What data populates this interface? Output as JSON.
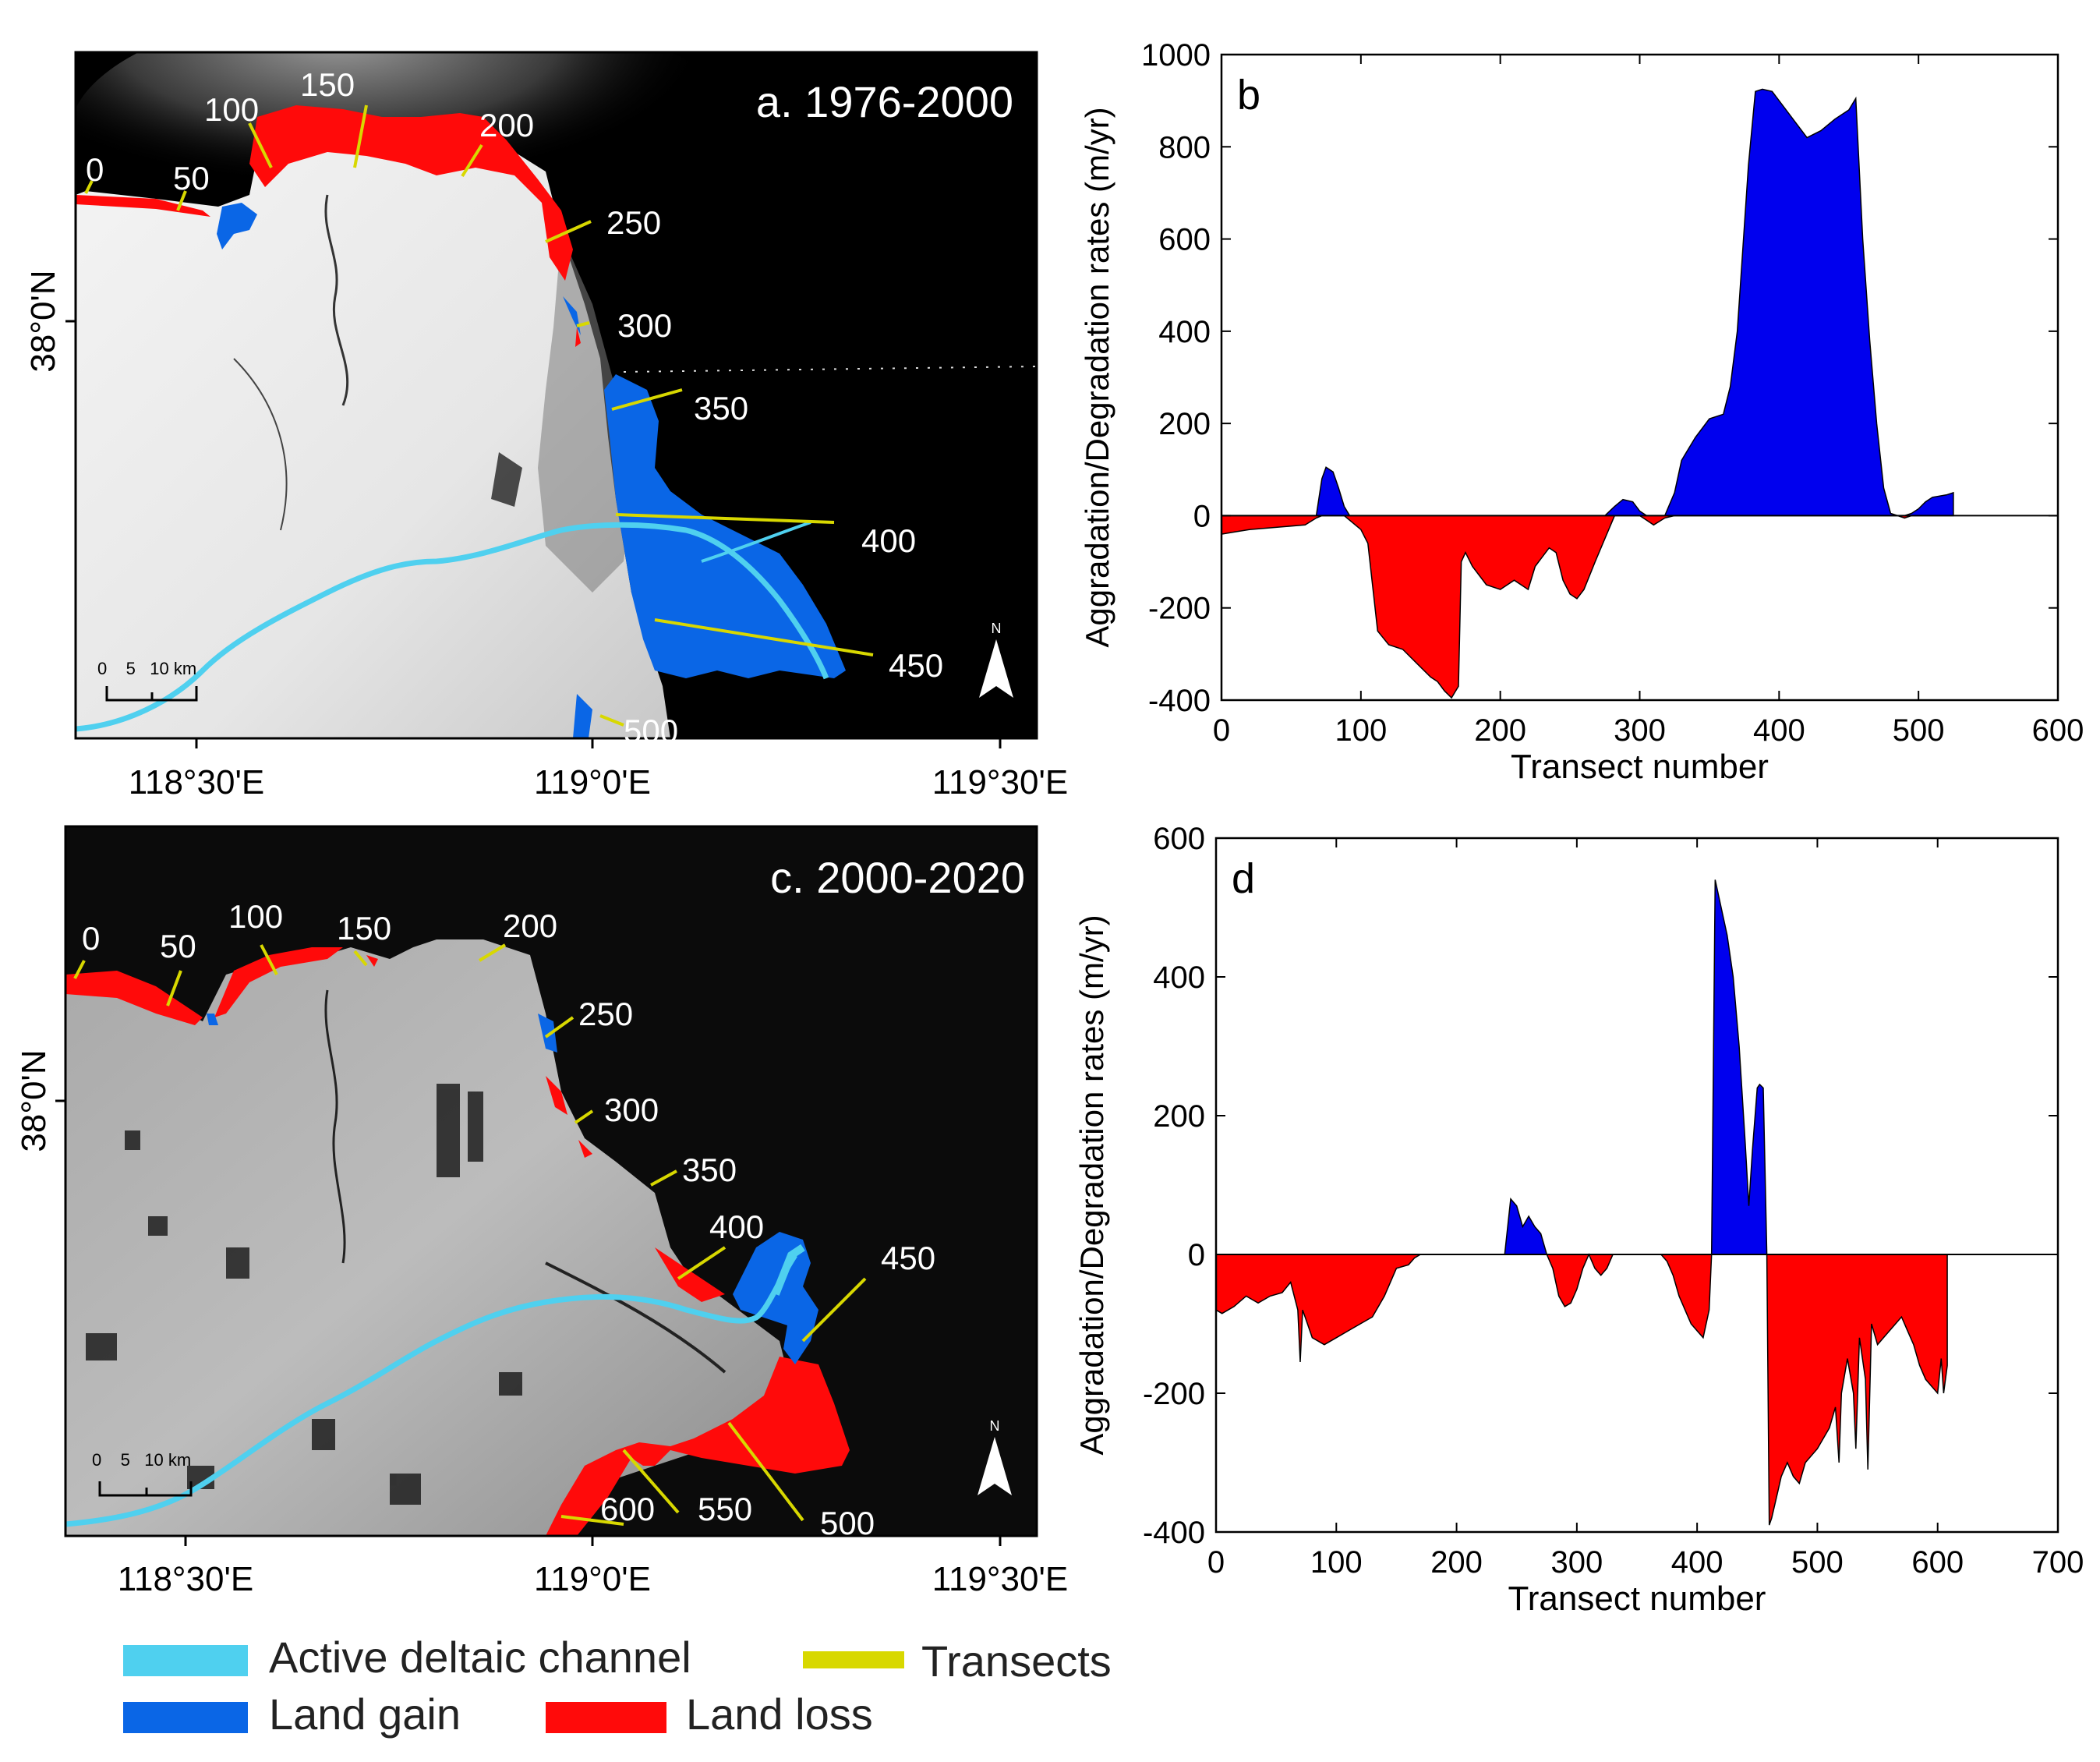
{
  "figure": {
    "colors": {
      "land_gain": "#0a66e6",
      "land_loss": "#ff0a0a",
      "channel": "#4fd0ef",
      "transect": "#d8d800",
      "gain_chart": "#0000ee",
      "loss_chart": "#ff0000"
    },
    "legend": {
      "channel": "Active deltaic channel",
      "transects": "Transects",
      "gain": "Land gain",
      "loss": "Land loss"
    }
  },
  "map_a": {
    "title": "a. 1976-2000",
    "lat_label": "38°0'N",
    "lon_labels": [
      "118°30'E",
      "119°0'E",
      "119°30'E"
    ],
    "scale_label": "0    5   10 km",
    "north": "N",
    "transects": [
      "0",
      "50",
      "100",
      "150",
      "200",
      "250",
      "300",
      "350",
      "400",
      "450",
      "500"
    ]
  },
  "map_c": {
    "title": "c. 2000-2020",
    "lat_label": "38°0'N",
    "lon_labels": [
      "118°30'E",
      "119°0'E",
      "119°30'E"
    ],
    "scale_label": "0    5   10 km",
    "north": "N",
    "transects": [
      "0",
      "50",
      "100",
      "150",
      "200",
      "250",
      "300",
      "350",
      "400",
      "450",
      "500",
      "550",
      "600"
    ]
  },
  "chart_data": [
    {
      "panel": "b",
      "type": "area",
      "title": "b",
      "xlabel": "Transect number",
      "ylabel": "Aggradation/Degradation rates (m/yr)",
      "xlim": [
        0,
        600
      ],
      "ylim": [
        -400,
        1000
      ],
      "xticks": [
        0,
        100,
        200,
        300,
        400,
        500,
        600
      ],
      "yticks": [
        -400,
        -200,
        0,
        200,
        400,
        600,
        800,
        1000
      ],
      "x": [
        0,
        10,
        20,
        40,
        60,
        68,
        72,
        75,
        80,
        84,
        88,
        92,
        96,
        100,
        105,
        112,
        120,
        130,
        140,
        150,
        155,
        160,
        165,
        170,
        172,
        175,
        180,
        190,
        200,
        210,
        220,
        225,
        230,
        235,
        240,
        245,
        250,
        255,
        260,
        268,
        275,
        282,
        288,
        295,
        300,
        305,
        310,
        318,
        325,
        330,
        340,
        350,
        360,
        365,
        370,
        378,
        383,
        388,
        395,
        400,
        410,
        420,
        430,
        440,
        450,
        455,
        460,
        465,
        470,
        475,
        480,
        485,
        490,
        495,
        500,
        505,
        510,
        520,
        525
      ],
      "y": [
        -40,
        -35,
        -30,
        -25,
        -20,
        -5,
        80,
        105,
        95,
        60,
        20,
        -10,
        -20,
        -30,
        -60,
        -250,
        -280,
        -290,
        -320,
        -350,
        -360,
        -380,
        -395,
        -370,
        -100,
        -80,
        -110,
        -150,
        -160,
        -140,
        -160,
        -110,
        -90,
        -70,
        -80,
        -140,
        -170,
        -180,
        -160,
        -100,
        -50,
        20,
        35,
        30,
        10,
        -10,
        -20,
        -5,
        50,
        120,
        170,
        210,
        220,
        280,
        400,
        760,
        920,
        925,
        920,
        900,
        860,
        820,
        835,
        860,
        880,
        905,
        600,
        380,
        200,
        60,
        5,
        0,
        -5,
        5,
        15,
        30,
        40,
        45,
        50
      ],
      "series": [
        {
          "name": "Land gain",
          "sign": "positive"
        },
        {
          "name": "Land loss",
          "sign": "negative"
        }
      ]
    },
    {
      "panel": "d",
      "type": "area",
      "title": "d",
      "xlabel": "Transect number",
      "ylabel": "Aggradation/Degradation rates (m/yr)",
      "xlim": [
        0,
        700
      ],
      "ylim": [
        -400,
        600
      ],
      "xticks": [
        0,
        100,
        200,
        300,
        400,
        500,
        600,
        700
      ],
      "yticks": [
        -400,
        -200,
        0,
        200,
        400,
        600
      ],
      "x": [
        0,
        5,
        15,
        25,
        35,
        45,
        55,
        62,
        68,
        70,
        72,
        76,
        80,
        90,
        100,
        110,
        120,
        130,
        140,
        150,
        160,
        165,
        170,
        240,
        245,
        250,
        255,
        260,
        265,
        270,
        275,
        280,
        285,
        290,
        295,
        300,
        305,
        310,
        315,
        320,
        325,
        330,
        370,
        375,
        380,
        385,
        390,
        395,
        400,
        405,
        410,
        412,
        415,
        420,
        425,
        430,
        435,
        440,
        443,
        446,
        450,
        452,
        455,
        458,
        460,
        462,
        466,
        470,
        475,
        480,
        485,
        490,
        500,
        510,
        515,
        518,
        520,
        525,
        530,
        532,
        535,
        540,
        542,
        545,
        550,
        555,
        560,
        565,
        570,
        575,
        580,
        585,
        590,
        595,
        600,
        603,
        605,
        608
      ],
      "y": [
        -80,
        -85,
        -75,
        -60,
        -70,
        -60,
        -55,
        -40,
        -80,
        -155,
        -80,
        -100,
        -120,
        -130,
        -120,
        -110,
        -100,
        -90,
        -60,
        -20,
        -15,
        -5,
        0,
        0,
        80,
        70,
        40,
        55,
        40,
        30,
        0,
        -20,
        -60,
        -75,
        -70,
        -50,
        -20,
        0,
        -20,
        -30,
        -20,
        0,
        0,
        -10,
        -30,
        -60,
        -80,
        -100,
        -110,
        -120,
        -80,
        0,
        540,
        500,
        460,
        400,
        300,
        160,
        70,
        150,
        240,
        245,
        240,
        0,
        -390,
        -380,
        -350,
        -320,
        -300,
        -320,
        -330,
        -300,
        -280,
        -250,
        -220,
        -300,
        -200,
        -150,
        -200,
        -280,
        -120,
        -180,
        -310,
        -100,
        -130,
        -120,
        -110,
        -100,
        -90,
        -110,
        -130,
        -160,
        -180,
        -190,
        -200,
        -150,
        -200,
        -160
      ]
    }
  ]
}
